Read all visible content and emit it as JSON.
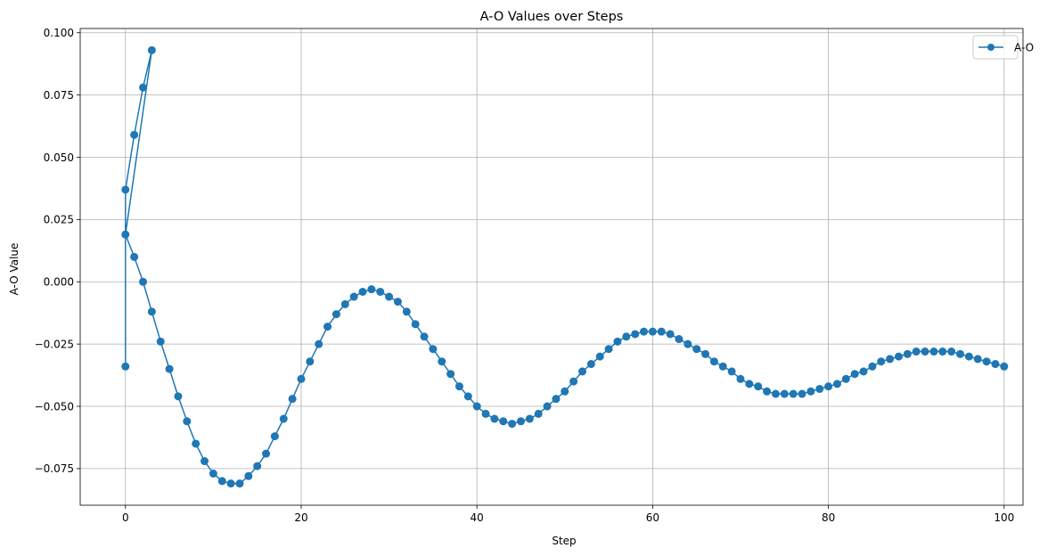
{
  "chart_data": {
    "type": "line",
    "title": "A-O Values over Steps",
    "xlabel": "Step",
    "ylabel": "A-O Value",
    "xlim": [
      -5.15,
      102.15
    ],
    "ylim": [
      -0.0897,
      0.1017
    ],
    "grid": true,
    "legend_position": "top-right",
    "x_ticks": [
      0,
      20,
      40,
      60,
      80,
      100
    ],
    "x_tick_labels": [
      "0",
      "20",
      "40",
      "60",
      "80",
      "100"
    ],
    "y_ticks": [
      -0.075,
      -0.05,
      -0.025,
      0.0,
      0.025,
      0.05,
      0.075,
      0.1
    ],
    "y_tick_labels": [
      "−0.075",
      "−0.050",
      "−0.025",
      "0.000",
      "0.025",
      "0.050",
      "0.075",
      "0.100"
    ],
    "series": [
      {
        "name": "A-O",
        "color": "#1f77b4",
        "marker": "circle",
        "x": [
          0,
          0,
          1,
          2,
          3,
          0,
          1,
          2,
          3,
          4,
          5,
          6,
          7,
          8,
          9,
          10,
          11,
          12,
          13,
          14,
          15,
          16,
          17,
          18,
          19,
          20,
          21,
          22,
          23,
          24,
          25,
          26,
          27,
          28,
          29,
          30,
          31,
          32,
          33,
          34,
          35,
          36,
          37,
          38,
          39,
          40,
          41,
          42,
          43,
          44,
          45,
          46,
          47,
          48,
          49,
          50,
          51,
          52,
          53,
          54,
          55,
          56,
          57,
          58,
          59,
          60,
          61,
          62,
          63,
          64,
          65,
          66,
          67,
          68,
          69,
          70,
          71,
          72,
          73,
          74,
          75,
          76,
          77,
          78,
          79,
          80,
          81,
          82,
          83,
          84,
          85,
          86,
          87,
          88,
          89,
          90,
          91,
          92,
          93,
          94,
          95,
          96,
          97,
          98,
          99,
          100
        ],
        "y": [
          -0.034,
          0.037,
          0.059,
          0.078,
          0.093,
          0.019,
          0.01,
          0.0,
          -0.012,
          -0.024,
          -0.035,
          -0.046,
          -0.056,
          -0.065,
          -0.072,
          -0.077,
          -0.08,
          -0.081,
          -0.081,
          -0.078,
          -0.074,
          -0.069,
          -0.062,
          -0.055,
          -0.047,
          -0.039,
          -0.032,
          -0.025,
          -0.018,
          -0.013,
          -0.009,
          -0.006,
          -0.004,
          -0.003,
          -0.004,
          -0.006,
          -0.008,
          -0.012,
          -0.017,
          -0.022,
          -0.027,
          -0.032,
          -0.037,
          -0.042,
          -0.046,
          -0.05,
          -0.053,
          -0.055,
          -0.056,
          -0.057,
          -0.056,
          -0.055,
          -0.053,
          -0.05,
          -0.047,
          -0.044,
          -0.04,
          -0.036,
          -0.033,
          -0.03,
          -0.027,
          -0.024,
          -0.022,
          -0.021,
          -0.02,
          -0.02,
          -0.02,
          -0.021,
          -0.023,
          -0.025,
          -0.027,
          -0.029,
          -0.032,
          -0.034,
          -0.036,
          -0.039,
          -0.041,
          -0.042,
          -0.044,
          -0.045,
          -0.045,
          -0.045,
          -0.045,
          -0.044,
          -0.043,
          -0.042,
          -0.041,
          -0.039,
          -0.037,
          -0.036,
          -0.034,
          -0.032,
          -0.031,
          -0.03,
          -0.029,
          -0.028,
          -0.028,
          -0.028,
          -0.028,
          -0.028,
          -0.029,
          -0.03,
          -0.031,
          -0.032,
          -0.033,
          -0.034
        ]
      }
    ]
  }
}
